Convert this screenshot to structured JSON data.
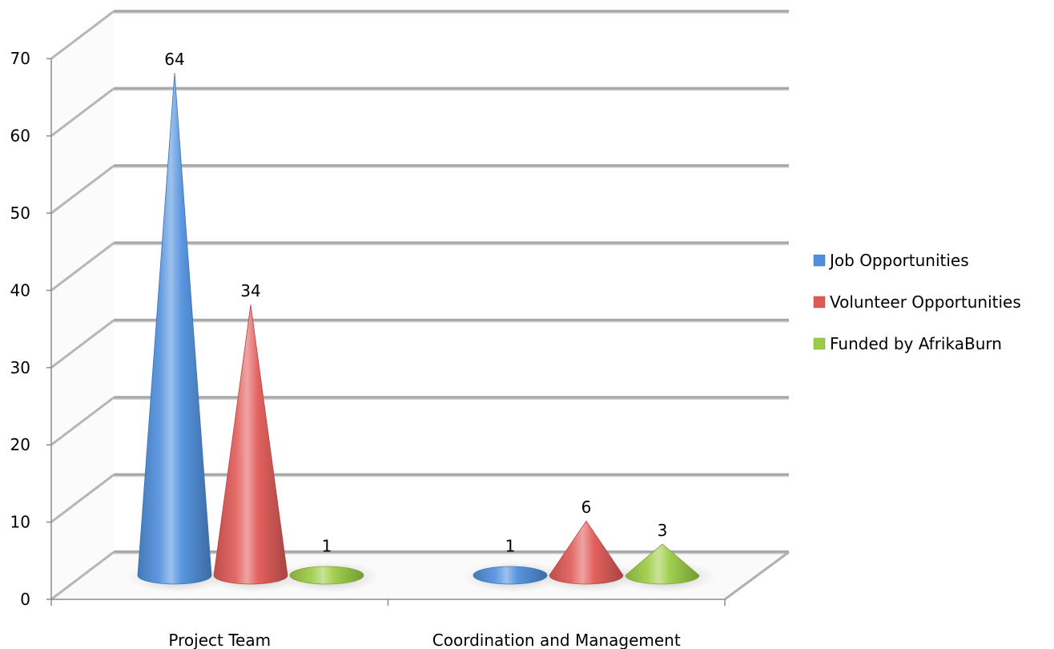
{
  "chart_data": {
    "type": "bar",
    "style": "3d-cone",
    "categories": [
      "Project Team",
      "Coordination and Management"
    ],
    "series": [
      {
        "name": "Job Opportunities",
        "values": [
          64,
          1
        ],
        "color": "#4f8fdc"
      },
      {
        "name": "Volunteer Opportunities",
        "values": [
          34,
          6
        ],
        "color": "#e05a57"
      },
      {
        "name": "Funded by AfrikaBurn",
        "values": [
          1,
          3
        ],
        "color": "#9ccc45"
      }
    ],
    "ylim": [
      0,
      70
    ],
    "yticks": [
      0,
      10,
      20,
      30,
      40,
      50,
      60,
      70
    ],
    "grid": true,
    "legend_position": "right"
  }
}
